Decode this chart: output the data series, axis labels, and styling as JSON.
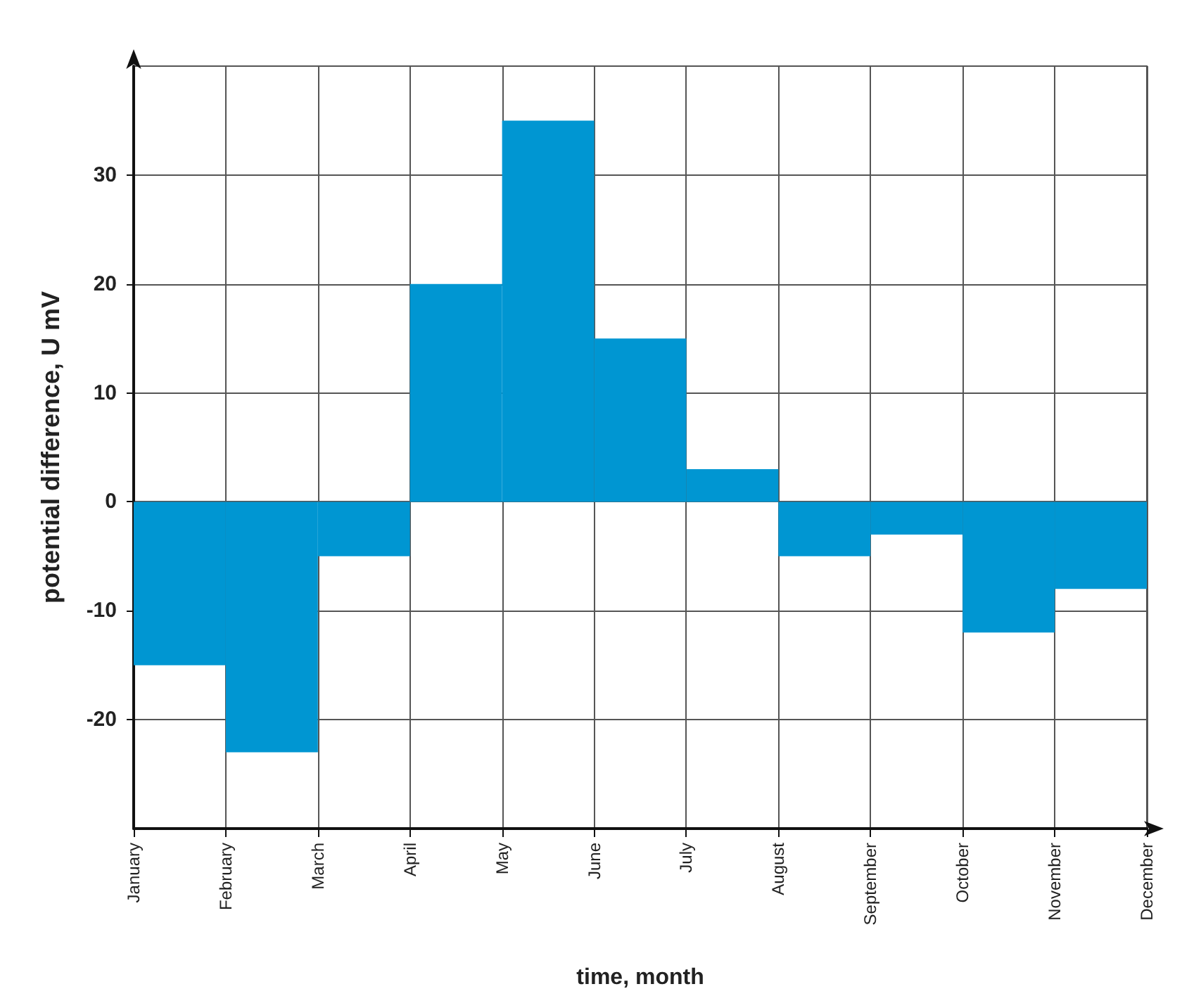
{
  "chart_data": {
    "type": "bar",
    "xlabel": "time, month",
    "ylabel": "potential difference, U mV",
    "categories": [
      "January",
      "February",
      "March",
      "April",
      "May",
      "June",
      "July",
      "August",
      "September",
      "October",
      "November",
      "December"
    ],
    "values": [
      -15,
      -23,
      -5,
      20,
      35,
      15,
      3,
      -5,
      -3,
      -12,
      -8,
      null
    ],
    "color": "#0096d2",
    "ylim": [
      -30,
      40
    ],
    "yticks": [
      -20,
      -10,
      0,
      10,
      20,
      30
    ],
    "grid": true
  }
}
